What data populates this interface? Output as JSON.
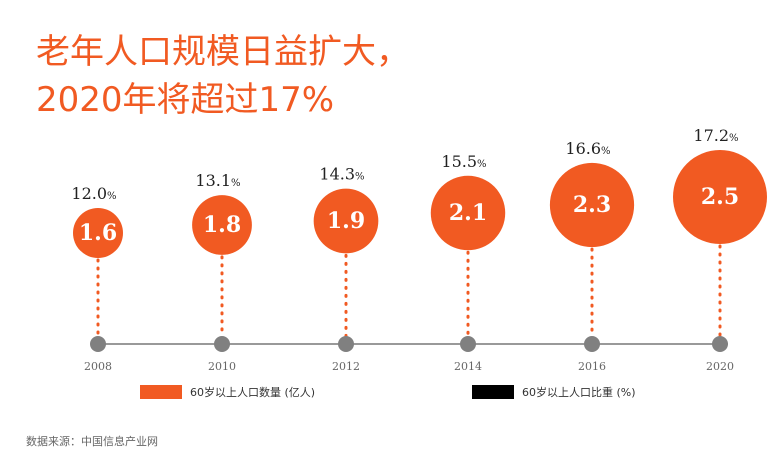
{
  "title": "老年人口规模日益扩大，\n2020年将超过17%",
  "legend": {
    "series1": "60岁以上人口数量 (亿人)",
    "series2": "60岁以上人口比重 (%)"
  },
  "source": "数据来源：中国信息产业网",
  "colors": {
    "accent": "#f15a22",
    "dark": "#000000",
    "axis": "#999999",
    "dot": "#808080"
  },
  "chart_data": {
    "type": "scatter",
    "categories": [
      "2008",
      "2010",
      "2012",
      "2014",
      "2016",
      "2020"
    ],
    "series": [
      {
        "name": "60岁以上人口数量 (亿人)",
        "values": [
          1.6,
          1.8,
          1.9,
          2.1,
          2.3,
          2.5
        ]
      },
      {
        "name": "60岁以上人口比重 (%)",
        "values": [
          12.0,
          13.1,
          14.3,
          15.5,
          16.6,
          17.2
        ]
      }
    ],
    "percent_unit": "%"
  }
}
